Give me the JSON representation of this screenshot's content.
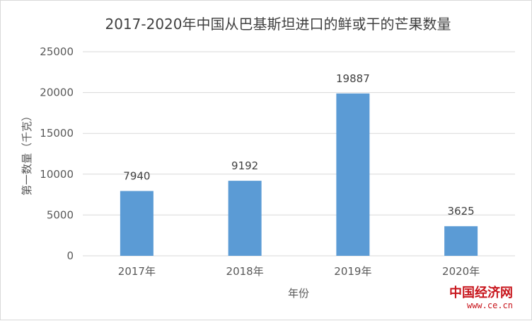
{
  "chart_data": {
    "type": "bar",
    "title": "2017-2020年中国从巴基斯坦进口的鲜或干的芒果数量",
    "xlabel": "年份",
    "ylabel": "第一数量（千克）",
    "categories": [
      "2017年",
      "2018年",
      "2019年",
      "2020年"
    ],
    "values": [
      7940,
      9192,
      19887,
      3625
    ],
    "data_labels": [
      "7940",
      "9192",
      "19887",
      "3625"
    ],
    "y_ticks": [
      "0",
      "5000",
      "10000",
      "15000",
      "20000",
      "25000"
    ],
    "ylim": [
      0,
      25000
    ],
    "grid": true,
    "legend": "none",
    "bar_color": "#5b9bd5",
    "grid_color": "#d9d9d9"
  },
  "watermark": {
    "main": "中国经济网",
    "url": "www.ce.cn",
    "color": "#c8161d"
  }
}
